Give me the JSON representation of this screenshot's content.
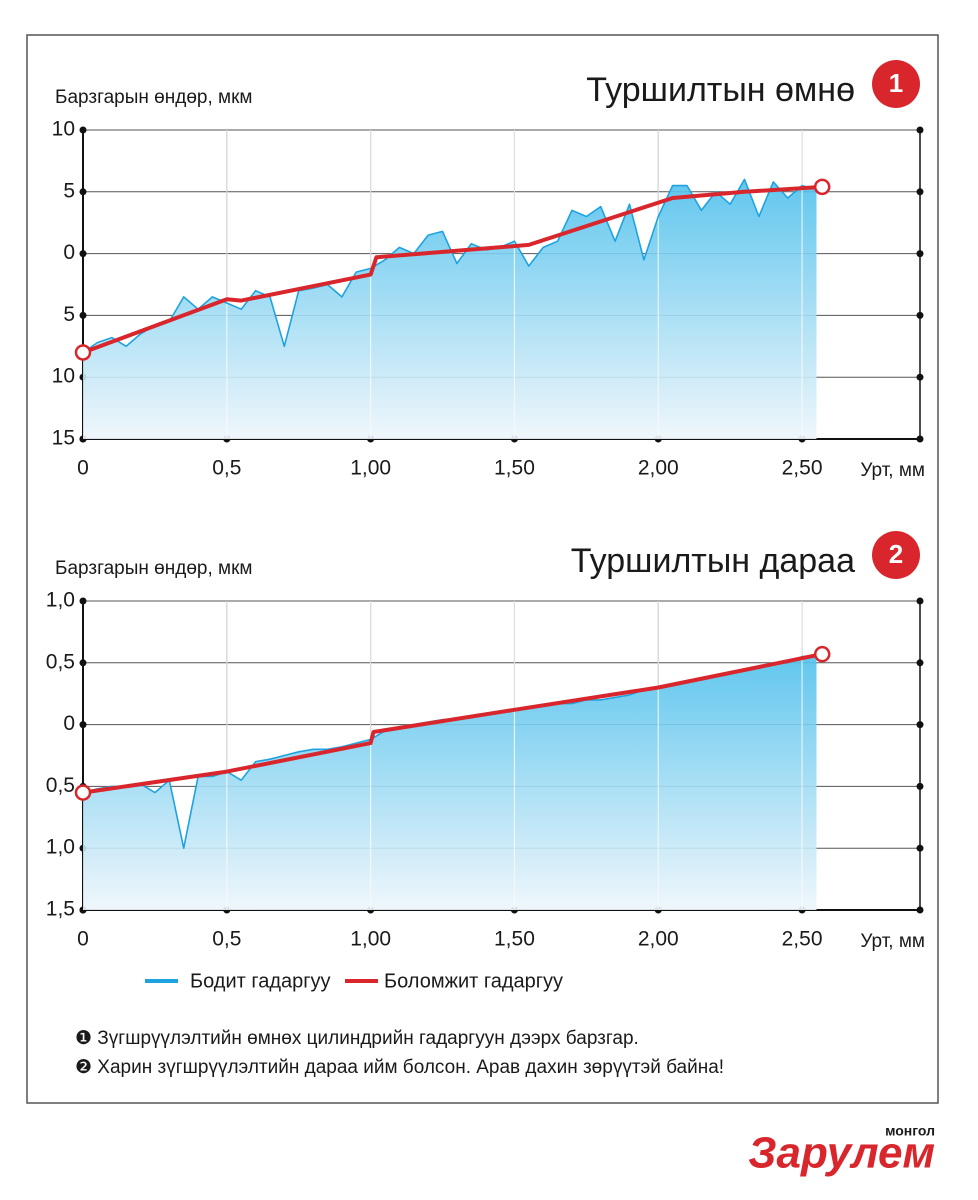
{
  "chart_data": [
    {
      "type": "line",
      "title": "Туршилтын өмнө",
      "badge": "1",
      "ylabel": "Барзгарын өндөр, мкм",
      "xlabel": "Урт, мм",
      "xlim": [
        0,
        2.91
      ],
      "ylim": [
        -15,
        10
      ],
      "xticks": [
        0,
        {
          "value": 0.5,
          "label": "0,5"
        },
        {
          "value": 1.0,
          "label": "1,00"
        },
        {
          "value": 1.5,
          "label": "1,50"
        },
        {
          "value": 2.0,
          "label": "2,00"
        },
        {
          "value": 2.5,
          "label": "2,50"
        }
      ],
      "yticks": [
        10,
        5,
        0,
        {
          "value": -5,
          "label": "5"
        },
        {
          "value": -10,
          "label": "10"
        },
        {
          "value": -15,
          "label": "15"
        }
      ],
      "grid": true,
      "series": [
        {
          "name": "Бодит гадаргуу",
          "color": "#1fa3e0",
          "x": [
            0,
            0.05,
            0.1,
            0.15,
            0.2,
            0.25,
            0.3,
            0.35,
            0.4,
            0.45,
            0.5,
            0.55,
            0.6,
            0.65,
            0.7,
            0.75,
            0.8,
            0.85,
            0.9,
            0.95,
            1.0,
            1.05,
            1.1,
            1.15,
            1.2,
            1.25,
            1.3,
            1.35,
            1.4,
            1.45,
            1.5,
            1.55,
            1.6,
            1.65,
            1.7,
            1.75,
            1.8,
            1.85,
            1.9,
            1.95,
            2.0,
            2.05,
            2.1,
            2.15,
            2.2,
            2.25,
            2.3,
            2.35,
            2.4,
            2.45,
            2.5,
            2.55
          ],
          "values": [
            -8,
            -7.2,
            -6.8,
            -7.5,
            -6.5,
            -5.8,
            -5.5,
            -3.5,
            -4.5,
            -3.5,
            -4,
            -4.5,
            -3,
            -3.5,
            -7.5,
            -3,
            -2.8,
            -2.5,
            -3.5,
            -1.5,
            -1.2,
            -0.5,
            0.5,
            0,
            1.5,
            1.8,
            -0.8,
            0.8,
            0.3,
            0.5,
            1,
            -1,
            0.5,
            1,
            3.5,
            3,
            3.8,
            1,
            4,
            -0.5,
            3,
            5.5,
            5.5,
            3.5,
            5,
            4,
            6,
            3,
            5.8,
            4.5,
            5.5,
            5.2
          ]
        },
        {
          "name": "Боломжит гадаргуу",
          "color": "#d9262c",
          "x": [
            0,
            0.5,
            0.55,
            1.0,
            1.02,
            1.55,
            2.05,
            2.3,
            2.57
          ],
          "values": [
            -8,
            -3.7,
            -3.8,
            -1.7,
            -0.3,
            0.7,
            4.5,
            5,
            5.4
          ]
        }
      ]
    },
    {
      "type": "line",
      "title": "Туршилтын дараа",
      "badge": "2",
      "ylabel": "Барзгарын өндөр, мкм",
      "xlabel": "Урт, мм",
      "xlim": [
        0,
        2.91
      ],
      "ylim": [
        -1.5,
        1.0
      ],
      "xticks": [
        0,
        {
          "value": 0.5,
          "label": "0,5"
        },
        {
          "value": 1.0,
          "label": "1,00"
        },
        {
          "value": 1.5,
          "label": "1,50"
        },
        {
          "value": 2.0,
          "label": "2,00"
        },
        {
          "value": 2.5,
          "label": "2,50"
        }
      ],
      "yticks": [
        {
          "value": 1.0,
          "label": "1,0"
        },
        {
          "value": 0.5,
          "label": "0,5"
        },
        0,
        {
          "value": -0.5,
          "label": "0,5"
        },
        {
          "value": -1.0,
          "label": "1,0"
        },
        {
          "value": -1.5,
          "label": "1,5"
        }
      ],
      "grid": true,
      "series": [
        {
          "name": "Бодит гадаргуу",
          "color": "#1fa3e0",
          "x": [
            0,
            0.05,
            0.1,
            0.15,
            0.2,
            0.25,
            0.3,
            0.35,
            0.4,
            0.45,
            0.5,
            0.55,
            0.6,
            0.65,
            0.7,
            0.75,
            0.8,
            0.85,
            0.9,
            0.95,
            1.0,
            1.05,
            1.1,
            1.15,
            1.2,
            1.25,
            1.3,
            1.35,
            1.4,
            1.45,
            1.5,
            1.55,
            1.6,
            1.65,
            1.7,
            1.75,
            1.8,
            1.85,
            1.9,
            1.95,
            2.0,
            2.05,
            2.1,
            2.15,
            2.2,
            2.25,
            2.3,
            2.35,
            2.4,
            2.45,
            2.5,
            2.55
          ],
          "values": [
            -0.55,
            -0.52,
            -0.5,
            -0.5,
            -0.48,
            -0.55,
            -0.45,
            -1.0,
            -0.42,
            -0.42,
            -0.38,
            -0.45,
            -0.3,
            -0.28,
            -0.25,
            -0.22,
            -0.2,
            -0.2,
            -0.18,
            -0.15,
            -0.12,
            -0.05,
            -0.02,
            0,
            0.02,
            0.04,
            0.05,
            0.07,
            0.08,
            0.1,
            0.12,
            0.13,
            0.15,
            0.17,
            0.17,
            0.2,
            0.2,
            0.22,
            0.24,
            0.28,
            0.3,
            0.32,
            0.35,
            0.36,
            0.4,
            0.42,
            0.45,
            0.47,
            0.5,
            0.5,
            0.55,
            0.56
          ]
        },
        {
          "name": "Боломжит гадаргуу",
          "color": "#d9262c",
          "x": [
            0,
            0.5,
            1.0,
            1.01,
            1.5,
            2.0,
            2.57
          ],
          "values": [
            -0.55,
            -0.38,
            -0.15,
            -0.06,
            0.12,
            0.3,
            0.57
          ]
        }
      ]
    }
  ],
  "notes": [
    "❶ Зүгшрүүлэлтийн өмнөх цилиндрийн гадаргуун дээрх барзгар.",
    "❷ Харин зүгшрүүлэлтийн дараа ийм болсон. Арав дахин зөрүүтэй байна!"
  ],
  "logo": {
    "name": "Зарулем",
    "sub": "монгол"
  }
}
